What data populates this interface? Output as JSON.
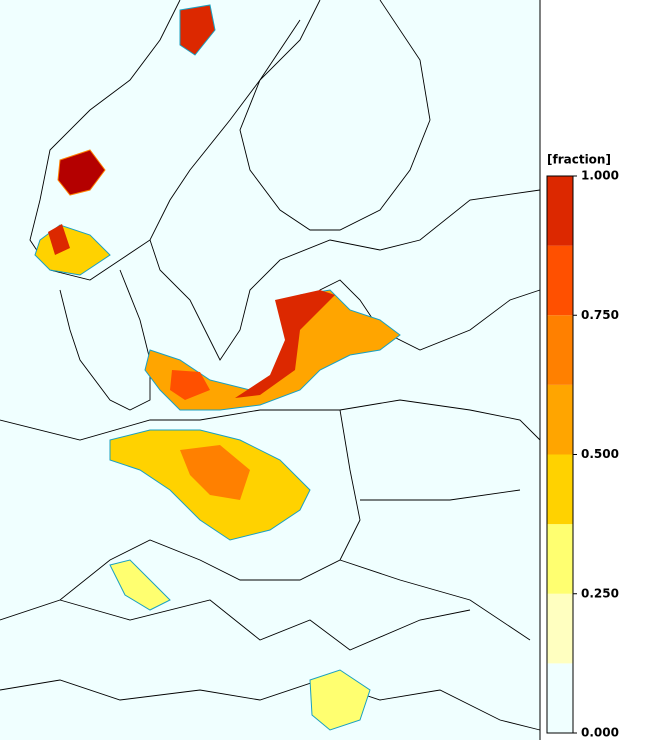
{
  "colorbar": {
    "label": "[fraction]",
    "levels": [
      0,
      0.125,
      0.25,
      0.375,
      0.5,
      0.625,
      0.75,
      0.875,
      1
    ],
    "colors": [
      "#f0ffff",
      "#ffffc0",
      "#ffff70",
      "#ffd200",
      "#ffa500",
      "#ff8000",
      "#ff5000",
      "#dc2800",
      "#b40000"
    ],
    "lim": [
      0,
      1
    ],
    "ticks": [
      {
        "value": 1,
        "label": "1.000"
      },
      {
        "value": 0.75,
        "label": "0.750"
      },
      {
        "value": 0.5,
        "label": "0.500"
      },
      {
        "value": 0.25,
        "label": "0.250"
      },
      {
        "value": 0,
        "label": "0.000"
      }
    ]
  }
}
